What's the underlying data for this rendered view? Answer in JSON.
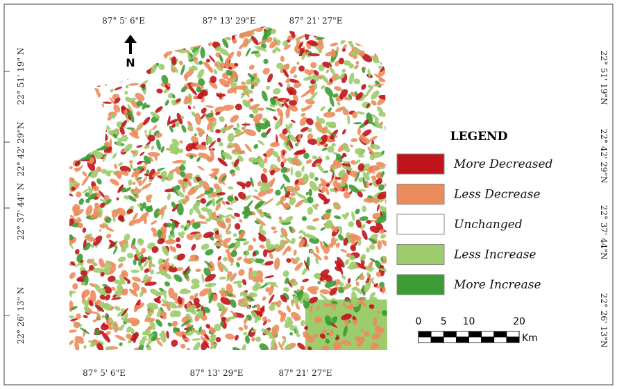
{
  "map": {
    "north": "N",
    "top_labels": [
      "87° 5' 6\"E",
      "87° 13' 29\"E",
      "87° 21' 27\"E"
    ],
    "bottom_labels": [
      "87° 5' 6\"E",
      "87° 13' 29\"E",
      "87° 21' 27\"E"
    ],
    "left_labels": [
      "22° 51' 19\" N",
      "22° 42' 29\"N",
      "22° 37' 44\" N",
      "22° 26' 13\" N"
    ],
    "right_labels": [
      "22° 51' 19\"N",
      "22° 42' 29\"N",
      "22° 37' 44\"N",
      "22° 26' 13\"N"
    ],
    "legend": {
      "title": "LEGEND",
      "items": [
        {
          "label": "More Decreased",
          "color": "#c0141c"
        },
        {
          "label": "Less Decrease",
          "color": "#ec8c5c"
        },
        {
          "label": "Unchanged",
          "color": "#ffffff"
        },
        {
          "label": "Less Increase",
          "color": "#9ccc6c"
        },
        {
          "label": "More Increase",
          "color": "#3c9c34"
        }
      ]
    },
    "scale": {
      "ticks": [
        0,
        5,
        10,
        20
      ],
      "unit": "Km"
    }
  }
}
